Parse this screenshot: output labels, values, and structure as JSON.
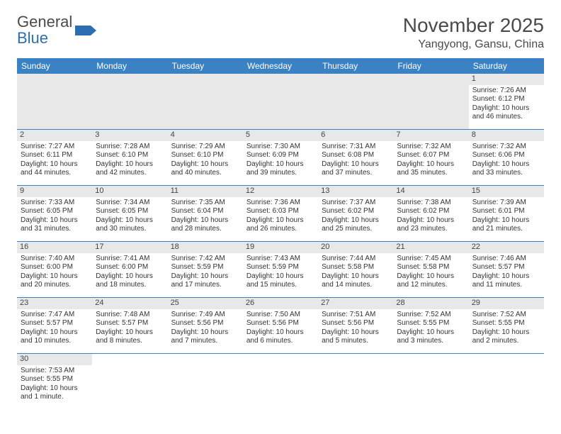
{
  "logo": {
    "text1": "General",
    "text2": "Blue"
  },
  "title": "November 2025",
  "location": "Yangyong, Gansu, China",
  "weekdays": [
    "Sunday",
    "Monday",
    "Tuesday",
    "Wednesday",
    "Thursday",
    "Friday",
    "Saturday"
  ],
  "header_bg": "#3b82c4",
  "header_fg": "#ffffff",
  "daynum_bg": "#e8e8e8",
  "divider_color": "#3b82c4",
  "font_size_title": 28,
  "font_size_location": 16,
  "font_size_cell": 10,
  "weeks": [
    [
      null,
      null,
      null,
      null,
      null,
      null,
      {
        "n": "1",
        "sr": "Sunrise: 7:26 AM",
        "ss": "Sunset: 6:12 PM",
        "dl": "Daylight: 10 hours and 46 minutes."
      }
    ],
    [
      {
        "n": "2",
        "sr": "Sunrise: 7:27 AM",
        "ss": "Sunset: 6:11 PM",
        "dl": "Daylight: 10 hours and 44 minutes."
      },
      {
        "n": "3",
        "sr": "Sunrise: 7:28 AM",
        "ss": "Sunset: 6:10 PM",
        "dl": "Daylight: 10 hours and 42 minutes."
      },
      {
        "n": "4",
        "sr": "Sunrise: 7:29 AM",
        "ss": "Sunset: 6:10 PM",
        "dl": "Daylight: 10 hours and 40 minutes."
      },
      {
        "n": "5",
        "sr": "Sunrise: 7:30 AM",
        "ss": "Sunset: 6:09 PM",
        "dl": "Daylight: 10 hours and 39 minutes."
      },
      {
        "n": "6",
        "sr": "Sunrise: 7:31 AM",
        "ss": "Sunset: 6:08 PM",
        "dl": "Daylight: 10 hours and 37 minutes."
      },
      {
        "n": "7",
        "sr": "Sunrise: 7:32 AM",
        "ss": "Sunset: 6:07 PM",
        "dl": "Daylight: 10 hours and 35 minutes."
      },
      {
        "n": "8",
        "sr": "Sunrise: 7:32 AM",
        "ss": "Sunset: 6:06 PM",
        "dl": "Daylight: 10 hours and 33 minutes."
      }
    ],
    [
      {
        "n": "9",
        "sr": "Sunrise: 7:33 AM",
        "ss": "Sunset: 6:05 PM",
        "dl": "Daylight: 10 hours and 31 minutes."
      },
      {
        "n": "10",
        "sr": "Sunrise: 7:34 AM",
        "ss": "Sunset: 6:05 PM",
        "dl": "Daylight: 10 hours and 30 minutes."
      },
      {
        "n": "11",
        "sr": "Sunrise: 7:35 AM",
        "ss": "Sunset: 6:04 PM",
        "dl": "Daylight: 10 hours and 28 minutes."
      },
      {
        "n": "12",
        "sr": "Sunrise: 7:36 AM",
        "ss": "Sunset: 6:03 PM",
        "dl": "Daylight: 10 hours and 26 minutes."
      },
      {
        "n": "13",
        "sr": "Sunrise: 7:37 AM",
        "ss": "Sunset: 6:02 PM",
        "dl": "Daylight: 10 hours and 25 minutes."
      },
      {
        "n": "14",
        "sr": "Sunrise: 7:38 AM",
        "ss": "Sunset: 6:02 PM",
        "dl": "Daylight: 10 hours and 23 minutes."
      },
      {
        "n": "15",
        "sr": "Sunrise: 7:39 AM",
        "ss": "Sunset: 6:01 PM",
        "dl": "Daylight: 10 hours and 21 minutes."
      }
    ],
    [
      {
        "n": "16",
        "sr": "Sunrise: 7:40 AM",
        "ss": "Sunset: 6:00 PM",
        "dl": "Daylight: 10 hours and 20 minutes."
      },
      {
        "n": "17",
        "sr": "Sunrise: 7:41 AM",
        "ss": "Sunset: 6:00 PM",
        "dl": "Daylight: 10 hours and 18 minutes."
      },
      {
        "n": "18",
        "sr": "Sunrise: 7:42 AM",
        "ss": "Sunset: 5:59 PM",
        "dl": "Daylight: 10 hours and 17 minutes."
      },
      {
        "n": "19",
        "sr": "Sunrise: 7:43 AM",
        "ss": "Sunset: 5:59 PM",
        "dl": "Daylight: 10 hours and 15 minutes."
      },
      {
        "n": "20",
        "sr": "Sunrise: 7:44 AM",
        "ss": "Sunset: 5:58 PM",
        "dl": "Daylight: 10 hours and 14 minutes."
      },
      {
        "n": "21",
        "sr": "Sunrise: 7:45 AM",
        "ss": "Sunset: 5:58 PM",
        "dl": "Daylight: 10 hours and 12 minutes."
      },
      {
        "n": "22",
        "sr": "Sunrise: 7:46 AM",
        "ss": "Sunset: 5:57 PM",
        "dl": "Daylight: 10 hours and 11 minutes."
      }
    ],
    [
      {
        "n": "23",
        "sr": "Sunrise: 7:47 AM",
        "ss": "Sunset: 5:57 PM",
        "dl": "Daylight: 10 hours and 10 minutes."
      },
      {
        "n": "24",
        "sr": "Sunrise: 7:48 AM",
        "ss": "Sunset: 5:57 PM",
        "dl": "Daylight: 10 hours and 8 minutes."
      },
      {
        "n": "25",
        "sr": "Sunrise: 7:49 AM",
        "ss": "Sunset: 5:56 PM",
        "dl": "Daylight: 10 hours and 7 minutes."
      },
      {
        "n": "26",
        "sr": "Sunrise: 7:50 AM",
        "ss": "Sunset: 5:56 PM",
        "dl": "Daylight: 10 hours and 6 minutes."
      },
      {
        "n": "27",
        "sr": "Sunrise: 7:51 AM",
        "ss": "Sunset: 5:56 PM",
        "dl": "Daylight: 10 hours and 5 minutes."
      },
      {
        "n": "28",
        "sr": "Sunrise: 7:52 AM",
        "ss": "Sunset: 5:55 PM",
        "dl": "Daylight: 10 hours and 3 minutes."
      },
      {
        "n": "29",
        "sr": "Sunrise: 7:52 AM",
        "ss": "Sunset: 5:55 PM",
        "dl": "Daylight: 10 hours and 2 minutes."
      }
    ],
    [
      {
        "n": "30",
        "sr": "Sunrise: 7:53 AM",
        "ss": "Sunset: 5:55 PM",
        "dl": "Daylight: 10 hours and 1 minute."
      },
      null,
      null,
      null,
      null,
      null,
      null
    ]
  ]
}
